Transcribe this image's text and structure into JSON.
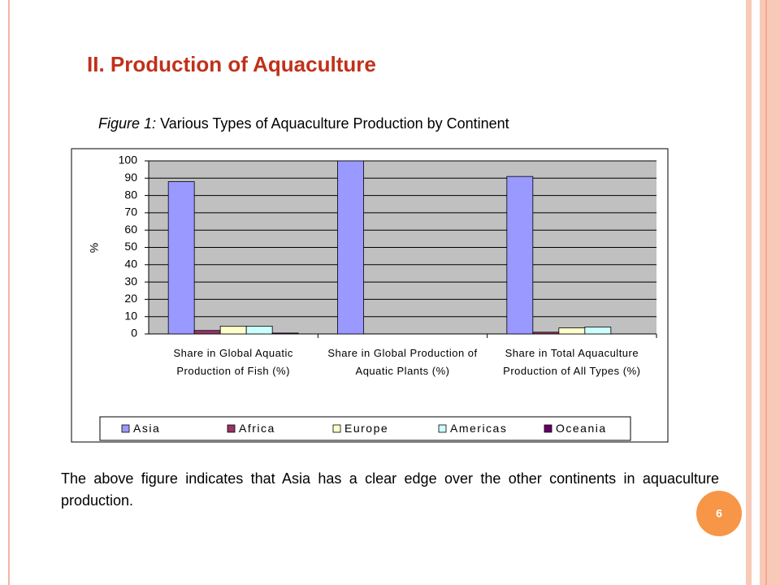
{
  "title": "II. Production of Aquaculture",
  "caption": {
    "label": "Figure 1:",
    "text": "Various Types of Aquaculture Production by Continent"
  },
  "paragraph": "The above figure indicates that Asia has a clear edge over the other continents in aquaculture production.",
  "page_number": "6",
  "chart_data": {
    "type": "bar",
    "y_label": "%",
    "categories": [
      "Share in Global Aquatic Production of Fish (%)",
      "Share in Global Production of Aquatic Plants (%)",
      "Share in Total Aquaculture Production of All Types (%)"
    ],
    "series": [
      {
        "name": "Asia",
        "color": "#9999ff",
        "values": [
          88,
          100,
          91
        ]
      },
      {
        "name": "Africa",
        "color": "#993366",
        "values": [
          2,
          0,
          1
        ]
      },
      {
        "name": "Europe",
        "color": "#ffffcc",
        "values": [
          4.5,
          0,
          3.5
        ]
      },
      {
        "name": "Americas",
        "color": "#ccffff",
        "values": [
          4.5,
          0,
          4
        ]
      },
      {
        "name": "Oceania",
        "color": "#660066",
        "values": [
          0.5,
          0,
          0
        ]
      }
    ],
    "ylim": [
      0,
      100
    ],
    "yticks": [
      0,
      10,
      20,
      30,
      40,
      50,
      60,
      70,
      80,
      90,
      100
    ],
    "grid": true,
    "legend": "bottom"
  }
}
